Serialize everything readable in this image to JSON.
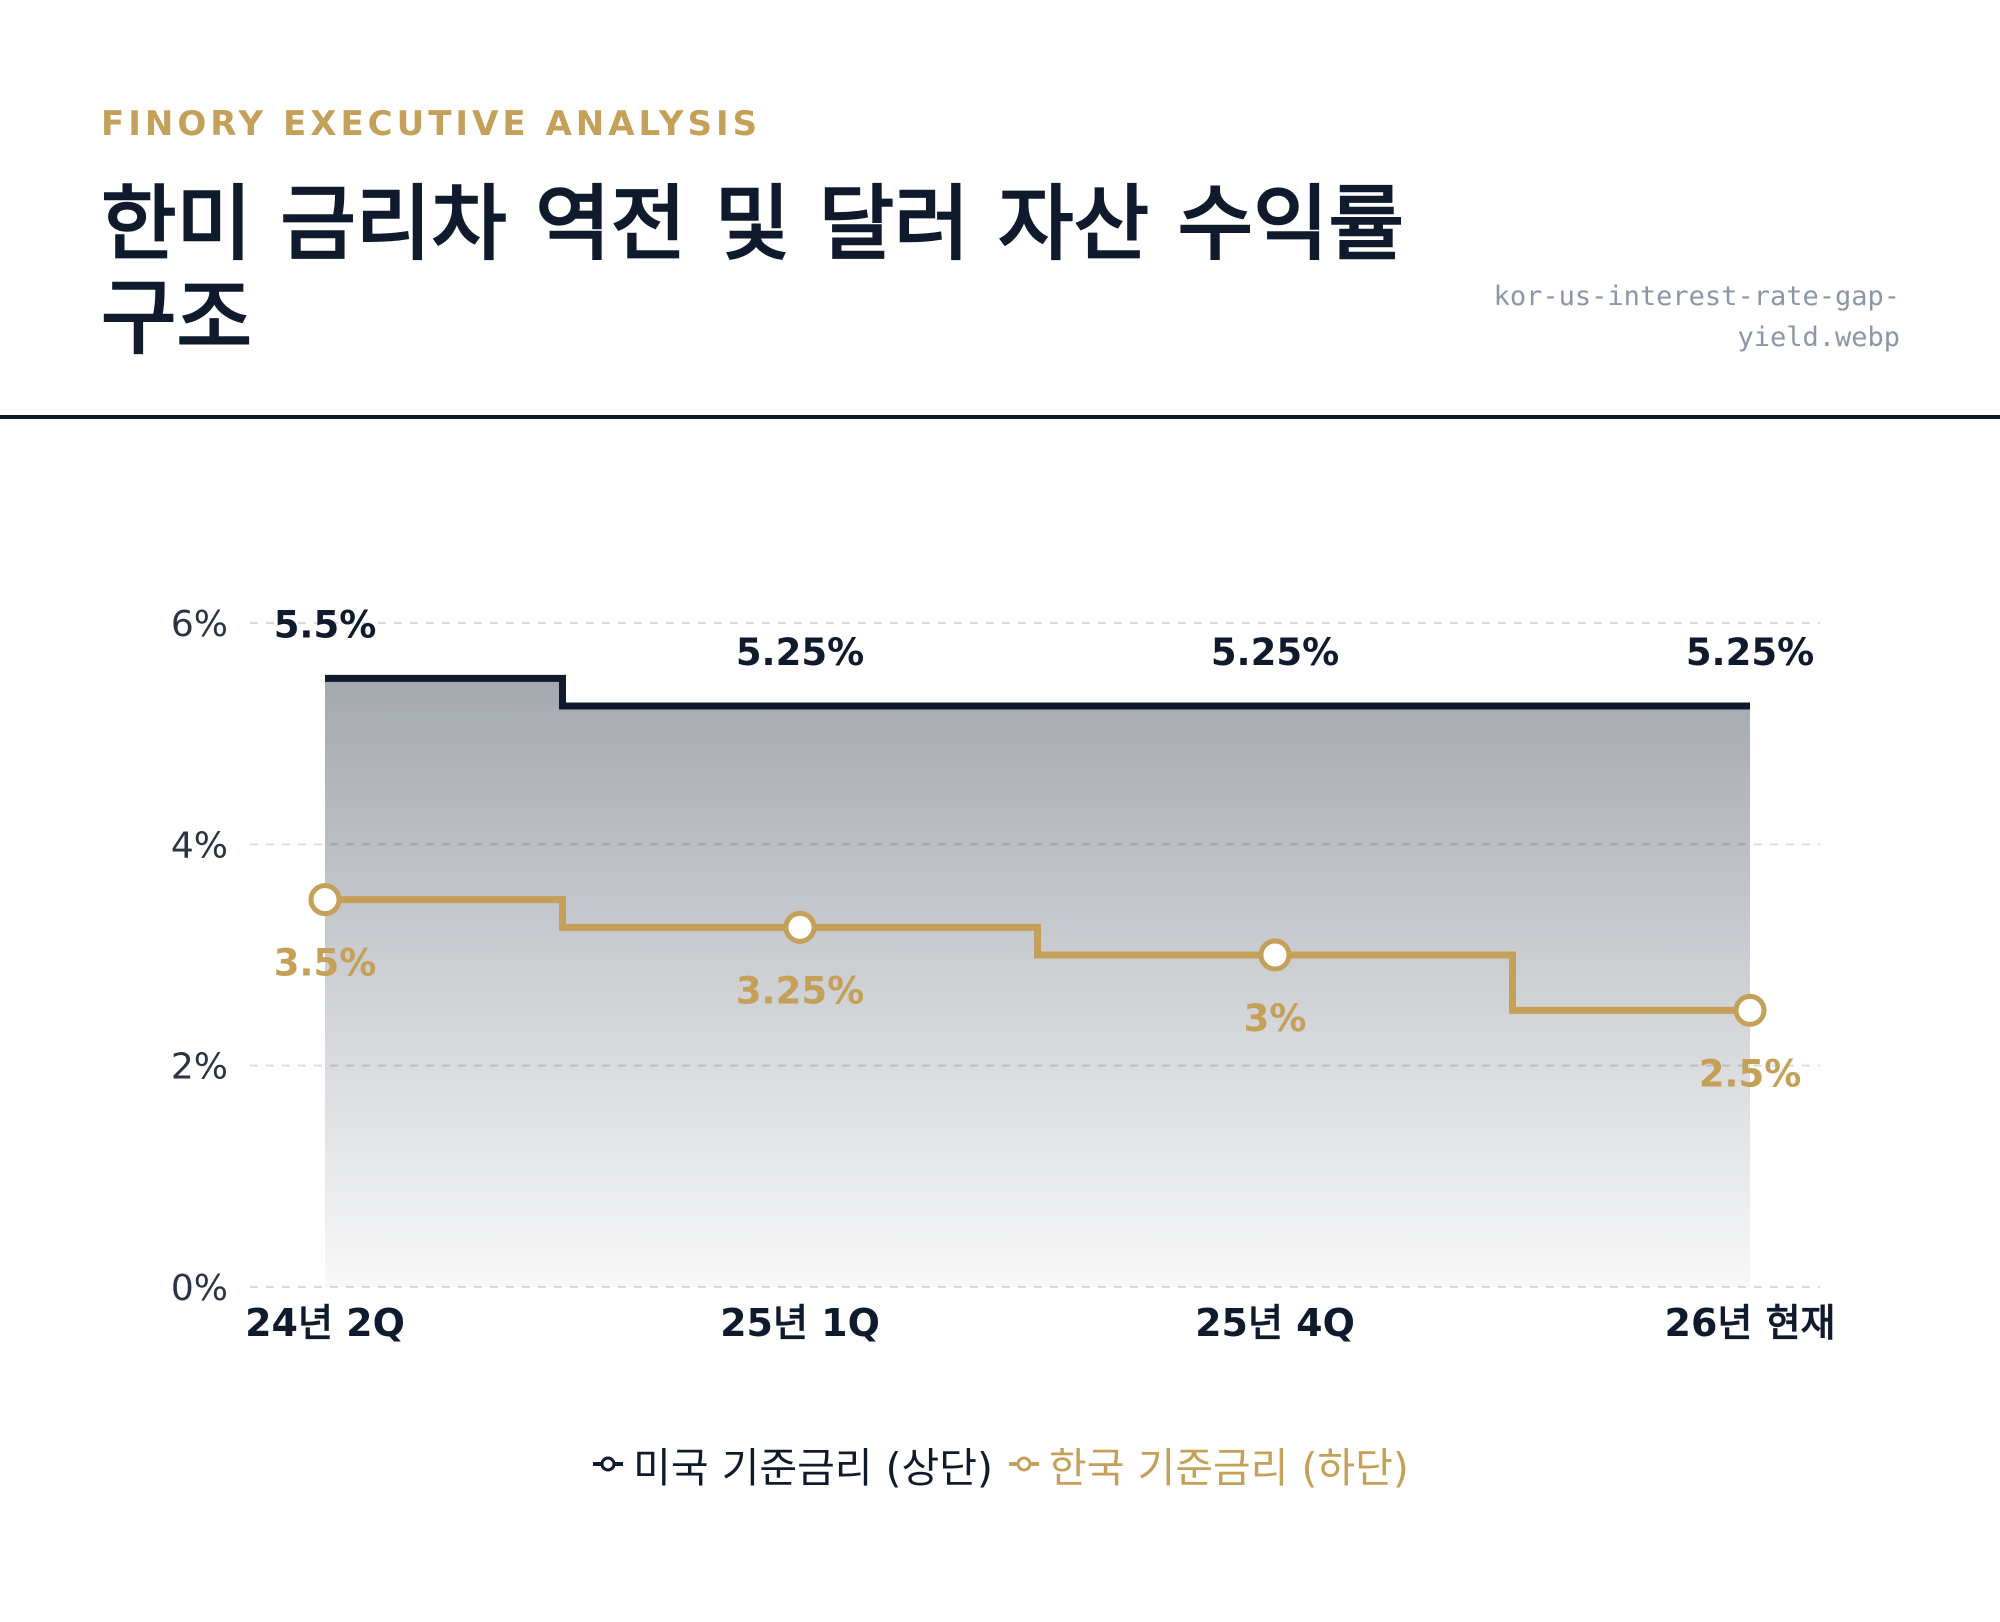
{
  "header": {
    "brand": "FINORY EXECUTIVE ANALYSIS",
    "title": "한미 금리차 역전 및 달러 자산 수익률 구조",
    "filename": "kor-us-interest-rate-gap-yield.webp"
  },
  "colors": {
    "navy": "#0f1b2d",
    "gold": "#c5a059",
    "grid": "#d9dde3"
  },
  "chart_data": {
    "type": "line",
    "step": true,
    "area_fill": "US series, vertical gradient",
    "categories": [
      "24년 2Q",
      "25년 1Q",
      "25년 4Q",
      "26년 현재"
    ],
    "ylim": [
      0,
      6
    ],
    "yticks": [
      0,
      2,
      4,
      6
    ],
    "ytick_labels": [
      "0%",
      "2%",
      "4%",
      "6%"
    ],
    "grid": true,
    "legend_position": "bottom-center",
    "series": [
      {
        "name": "미국 기준금리 (상단)",
        "color": "#0f1b2d",
        "values": [
          5.5,
          5.25,
          5.25,
          5.25
        ],
        "labels": [
          "5.5%",
          "5.25%",
          "5.25%",
          "5.25%"
        ],
        "markers": false
      },
      {
        "name": "한국 기준금리 (하단)",
        "color": "#c5a059",
        "values": [
          3.5,
          3.25,
          3.0,
          2.5
        ],
        "labels": [
          "3.5%",
          "3.25%",
          "3%",
          "2.5%"
        ],
        "markers": true
      }
    ]
  }
}
